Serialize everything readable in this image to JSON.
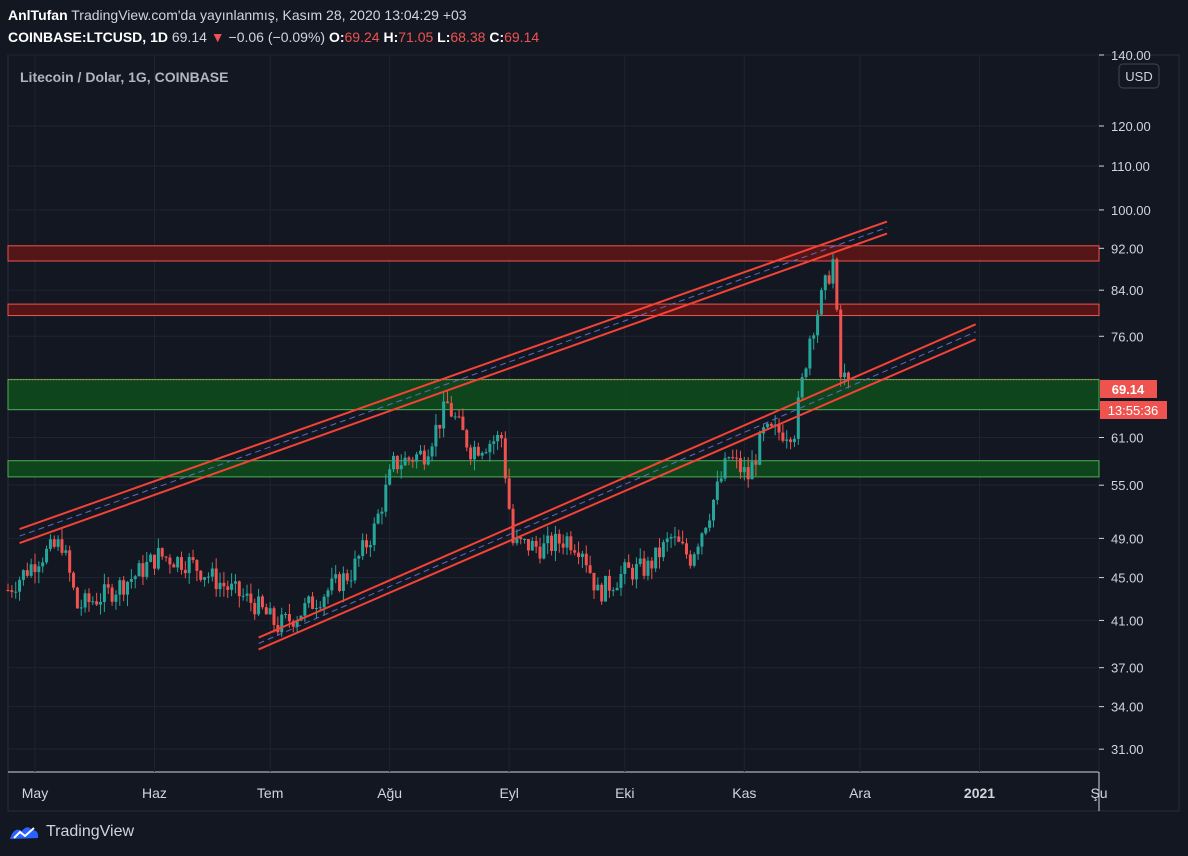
{
  "header": {
    "author": "AnlTufan",
    "published": "TradingView.com'da yayınlanmış, Kasım 28, 2020 13:04:29 +03",
    "symbol": "COINBASE:LTCUSD, 1D",
    "last": "69.14",
    "change": "−0.06 (−0.09%)",
    "o_label": "O:",
    "o": "69.24",
    "h_label": "H:",
    "h": "71.05",
    "l_label": "L:",
    "l": "68.38",
    "c_label": "C:",
    "c": "69.14"
  },
  "chart_title": "Litecoin / Dolar, 1G, COINBASE",
  "currency_badge": "USD",
  "last_price_tag": "69.14",
  "countdown_tag": "13:55:36",
  "brand": "TradingView",
  "colors": {
    "background": "#131722",
    "up": "#26a69a",
    "down": "#ef5350",
    "grid": "#1f2430",
    "resistance_zone": "#b71c1c",
    "support_zone": "#1b5e20",
    "channel": "#f44336"
  },
  "chart_data": {
    "type": "candlestick",
    "title": "Litecoin / Dolar, 1G, COINBASE",
    "y_scale": "log",
    "ylim": [
      29.5,
      140
    ],
    "y_ticks": [
      "140.00",
      "120.00",
      "110.00",
      "100.00",
      "92.00",
      "84.00",
      "76.00",
      "69.14",
      "61.00",
      "55.00",
      "49.00",
      "45.00",
      "41.00",
      "37.00",
      "34.00",
      "31.00"
    ],
    "x_tick_labels": [
      "May",
      "Haz",
      "Tem",
      "Ağu",
      "Eyl",
      "Eki",
      "Kas",
      "Ara",
      "2021",
      "Şu"
    ],
    "x_ticks": [
      "2020-05-01",
      "2020-06-01",
      "2020-07-01",
      "2020-08-01",
      "2020-09-01",
      "2020-10-01",
      "2020-11-01",
      "2020-12-01",
      "2021-01-01",
      "2021-02-01"
    ],
    "x_range": [
      "2020-04-24",
      "2021-02-01"
    ],
    "grid": true,
    "zones": [
      {
        "kind": "resistance",
        "low": 89.5,
        "high": 92.5
      },
      {
        "kind": "resistance",
        "low": 79.5,
        "high": 81.5
      },
      {
        "kind": "support",
        "low": 64.8,
        "high": 69.2
      },
      {
        "kind": "support",
        "low": 56.0,
        "high": 58.0
      }
    ],
    "channels": [
      {
        "name": "upper",
        "lines": [
          {
            "from": [
              "2020-04-27",
              50.0
            ],
            "to": [
              "2020-12-08",
              97.5
            ]
          },
          {
            "from": [
              "2020-04-27",
              48.5
            ],
            "to": [
              "2020-12-08",
              95.0
            ]
          }
        ]
      },
      {
        "name": "lower",
        "lines": [
          {
            "from": [
              "2020-06-28",
              39.5
            ],
            "to": [
              "2020-12-31",
              78.0
            ]
          },
          {
            "from": [
              "2020-06-28",
              38.5
            ],
            "to": [
              "2020-12-31",
              75.5
            ]
          }
        ]
      }
    ],
    "closes_anchor": [
      [
        "2020-04-24",
        43.8
      ],
      [
        "2020-05-02",
        47.0
      ],
      [
        "2020-05-08",
        48.5
      ],
      [
        "2020-05-12",
        42.2
      ],
      [
        "2020-05-20",
        43.5
      ],
      [
        "2020-05-27",
        45.2
      ],
      [
        "2020-06-02",
        47.2
      ],
      [
        "2020-06-10",
        46.5
      ],
      [
        "2020-06-20",
        44.0
      ],
      [
        "2020-06-27",
        42.5
      ],
      [
        "2020-07-03",
        40.5
      ],
      [
        "2020-07-08",
        41.5
      ],
      [
        "2020-07-15",
        43.5
      ],
      [
        "2020-07-22",
        45.5
      ],
      [
        "2020-07-28",
        50.0
      ],
      [
        "2020-08-02",
        57.5
      ],
      [
        "2020-08-10",
        59.0
      ],
      [
        "2020-08-16",
        65.5
      ],
      [
        "2020-08-22",
        59.5
      ],
      [
        "2020-08-30",
        61.0
      ],
      [
        "2020-09-02",
        48.5
      ],
      [
        "2020-09-10",
        48.0
      ],
      [
        "2020-09-16",
        49.0
      ],
      [
        "2020-09-20",
        48.0
      ],
      [
        "2020-09-24",
        43.5
      ],
      [
        "2020-10-01",
        45.5
      ],
      [
        "2020-10-07",
        46.0
      ],
      [
        "2020-10-13",
        49.0
      ],
      [
        "2020-10-18",
        47.0
      ],
      [
        "2020-10-23",
        52.0
      ],
      [
        "2020-10-28",
        58.5
      ],
      [
        "2020-11-02",
        56.0
      ],
      [
        "2020-11-06",
        61.5
      ],
      [
        "2020-11-14",
        62.0
      ],
      [
        "2020-11-18",
        76.0
      ],
      [
        "2020-11-24",
        89.5
      ],
      [
        "2020-11-26",
        69.5
      ],
      [
        "2020-11-28",
        69.14
      ]
    ]
  }
}
